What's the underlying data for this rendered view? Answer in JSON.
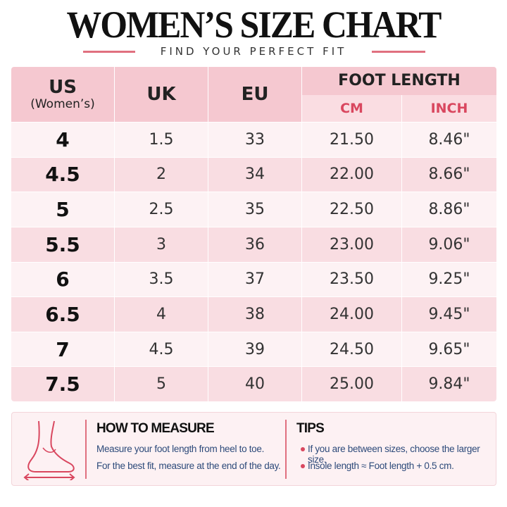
{
  "header": {
    "title": "WOMEN’S SIZE CHART",
    "subtitle": "FIND YOUR PERFECT FIT"
  },
  "table": {
    "headers": {
      "us": "US",
      "us_note": "(Women’s)",
      "uk": "UK",
      "eu": "EU",
      "foot_length": "FOOT LENGTH",
      "cm": "CM",
      "inch": "INCH"
    },
    "rows": [
      [
        "4",
        "1.5",
        "33",
        "21.50",
        "8.46\""
      ],
      [
        "4.5",
        "2",
        "34",
        "22.00",
        "8.66\""
      ],
      [
        "5",
        "2.5",
        "35",
        "22.50",
        "8.86\""
      ],
      [
        "5.5",
        "3",
        "36",
        "23.00",
        "9.06\""
      ],
      [
        "6",
        "3.5",
        "37",
        "23.50",
        "9.25\""
      ],
      [
        "6.5",
        "4",
        "38",
        "24.00",
        "9.45\""
      ],
      [
        "7",
        "4.5",
        "39",
        "24.50",
        "9.65\""
      ],
      [
        "7.5",
        "5",
        "40",
        "25.00",
        "9.84\""
      ]
    ]
  },
  "measure": {
    "title": "HOW TO MEASURE",
    "lines": [
      "Measure your foot length from heel to toe.",
      "For the best fit, measure at the end of the day."
    ]
  },
  "tips": {
    "title": "TIPS",
    "items": [
      "If you are between sizes, choose the larger size.",
      "Insole length ≈ Foot length + 0.5 cm."
    ]
  }
}
